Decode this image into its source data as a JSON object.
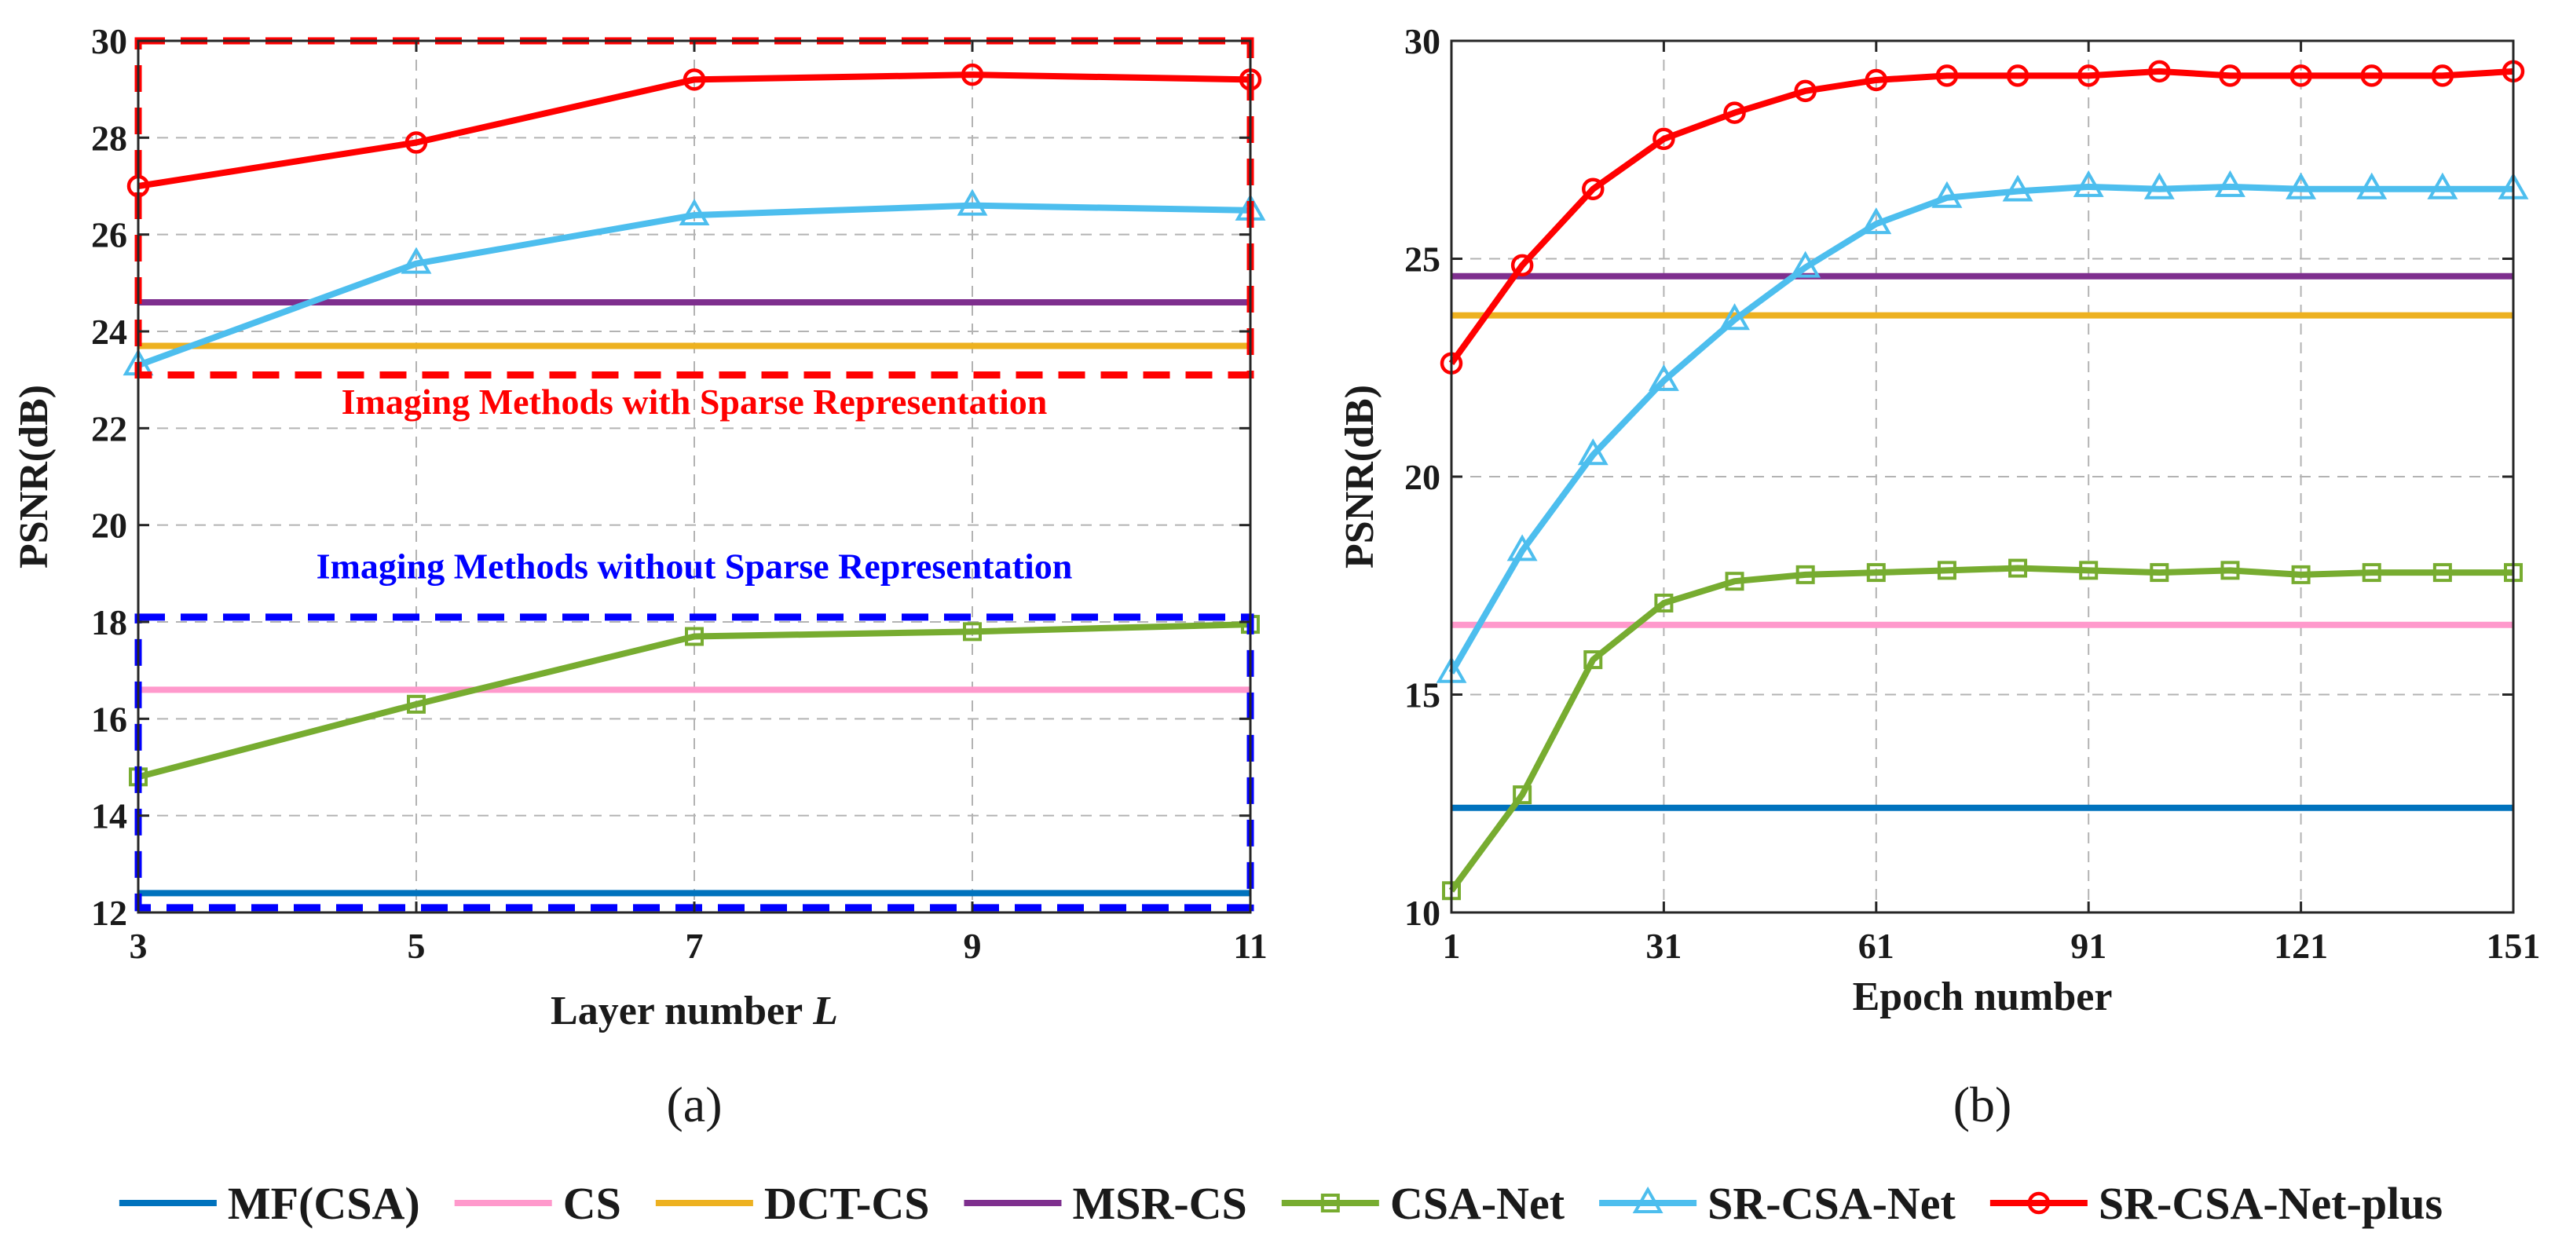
{
  "colors": {
    "mf": "#0072BD",
    "cs": "#FF99CC",
    "dct": "#EDB120",
    "msr": "#7E2F8E",
    "csa": "#77AC30",
    "sr": "#4DBEEE",
    "srplus": "#FF0000",
    "annot_red": "#FF0000",
    "annot_blue": "#0000FF"
  },
  "legend": [
    {
      "key": "mf",
      "label": "MF(CSA)",
      "marker": "none"
    },
    {
      "key": "cs",
      "label": "CS",
      "marker": "none"
    },
    {
      "key": "dct",
      "label": "DCT-CS",
      "marker": "none"
    },
    {
      "key": "msr",
      "label": "MSR-CS",
      "marker": "none"
    },
    {
      "key": "csa",
      "label": "CSA-Net",
      "marker": "square"
    },
    {
      "key": "sr",
      "label": "SR-CSA-Net",
      "marker": "triangle"
    },
    {
      "key": "srplus",
      "label": "SR-CSA-Net-plus",
      "marker": "circle"
    }
  ],
  "chart_data": [
    {
      "id": "a",
      "type": "line",
      "sublabel": "(a)",
      "xlabel": "Layer number",
      "xlabel_italic": "L",
      "ylabel": "PSNR(dB)",
      "xlim": [
        3,
        11
      ],
      "ylim": [
        12,
        30
      ],
      "xticks": [
        3,
        5,
        7,
        9,
        11
      ],
      "yticks": [
        12,
        14,
        16,
        18,
        20,
        22,
        24,
        26,
        28,
        30
      ],
      "grid": true,
      "x": [
        3,
        5,
        7,
        9,
        11
      ],
      "series": [
        {
          "key": "mf",
          "name": "MF(CSA)",
          "values": [
            12.4,
            12.4,
            12.4,
            12.4,
            12.4
          ]
        },
        {
          "key": "cs",
          "name": "CS",
          "values": [
            16.6,
            16.6,
            16.6,
            16.6,
            16.6
          ]
        },
        {
          "key": "dct",
          "name": "DCT-CS",
          "values": [
            23.7,
            23.7,
            23.7,
            23.7,
            23.7
          ]
        },
        {
          "key": "msr",
          "name": "MSR-CS",
          "values": [
            24.6,
            24.6,
            24.6,
            24.6,
            24.6
          ]
        },
        {
          "key": "csa",
          "name": "CSA-Net",
          "values": [
            14.8,
            16.3,
            17.7,
            17.8,
            17.95
          ]
        },
        {
          "key": "sr",
          "name": "SR-CSA-Net",
          "values": [
            23.3,
            25.4,
            26.4,
            26.6,
            26.5
          ]
        },
        {
          "key": "srplus",
          "name": "SR-CSA-Net-plus",
          "values": [
            27.0,
            27.9,
            29.2,
            29.3,
            29.2
          ]
        }
      ],
      "annotations": [
        {
          "text": "Imaging Methods with Sparse Representation",
          "color_key": "annot_red",
          "x": 7,
          "y": 22.3,
          "box": {
            "x0": 3,
            "x1": 11,
            "y0": 23.1,
            "y1": 30
          }
        },
        {
          "text": "Imaging Methods without Sparse Representation",
          "color_key": "annot_blue",
          "x": 7,
          "y": 18.9,
          "box": {
            "x0": 3,
            "x1": 11,
            "y0": 12.1,
            "y1": 18.1
          }
        }
      ]
    },
    {
      "id": "b",
      "type": "line",
      "sublabel": "(b)",
      "xlabel": "Epoch number",
      "ylabel": "PSNR(dB)",
      "xlim": [
        1,
        151
      ],
      "ylim": [
        10,
        30
      ],
      "xticks": [
        1,
        31,
        61,
        91,
        121,
        151
      ],
      "yticks": [
        10,
        15,
        20,
        25,
        30
      ],
      "grid": true,
      "x": [
        1,
        11,
        21,
        31,
        41,
        51,
        61,
        71,
        81,
        91,
        101,
        111,
        121,
        131,
        141,
        151
      ],
      "series": [
        {
          "key": "mf",
          "name": "MF(CSA)",
          "values": [
            12.4,
            12.4,
            12.4,
            12.4,
            12.4,
            12.4,
            12.4,
            12.4,
            12.4,
            12.4,
            12.4,
            12.4,
            12.4,
            12.4,
            12.4,
            12.4
          ]
        },
        {
          "key": "cs",
          "name": "CS",
          "values": [
            16.6,
            16.6,
            16.6,
            16.6,
            16.6,
            16.6,
            16.6,
            16.6,
            16.6,
            16.6,
            16.6,
            16.6,
            16.6,
            16.6,
            16.6,
            16.6
          ]
        },
        {
          "key": "dct",
          "name": "DCT-CS",
          "values": [
            23.7,
            23.7,
            23.7,
            23.7,
            23.7,
            23.7,
            23.7,
            23.7,
            23.7,
            23.7,
            23.7,
            23.7,
            23.7,
            23.7,
            23.7,
            23.7
          ]
        },
        {
          "key": "msr",
          "name": "MSR-CS",
          "values": [
            24.6,
            24.6,
            24.6,
            24.6,
            24.6,
            24.6,
            24.6,
            24.6,
            24.6,
            24.6,
            24.6,
            24.6,
            24.6,
            24.6,
            24.6,
            24.6
          ]
        },
        {
          "key": "csa",
          "name": "CSA-Net",
          "values": [
            10.5,
            12.7,
            15.8,
            17.1,
            17.6,
            17.75,
            17.8,
            17.85,
            17.9,
            17.85,
            17.8,
            17.85,
            17.75,
            17.8,
            17.8,
            17.8
          ]
        },
        {
          "key": "sr",
          "name": "SR-CSA-Net",
          "values": [
            15.5,
            18.3,
            20.5,
            22.2,
            23.6,
            24.8,
            25.8,
            26.4,
            26.55,
            26.65,
            26.6,
            26.65,
            26.6,
            26.6,
            26.6,
            26.6
          ]
        },
        {
          "key": "srplus",
          "name": "SR-CSA-Net-plus",
          "values": [
            22.6,
            24.85,
            26.6,
            27.75,
            28.35,
            28.85,
            29.1,
            29.2,
            29.2,
            29.2,
            29.3,
            29.2,
            29.2,
            29.2,
            29.2,
            29.3
          ]
        }
      ]
    }
  ]
}
